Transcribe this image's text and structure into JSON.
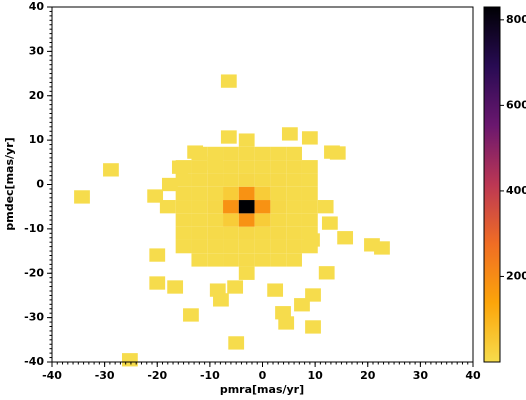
{
  "chart_data": {
    "type": "heatmap",
    "xlabel": "pmra[mas/yr]",
    "ylabel": "pmdec[mas/yr]",
    "xlim": [
      -40,
      40
    ],
    "ylim": [
      -40,
      40
    ],
    "xticks": [
      -40,
      -30,
      -20,
      -10,
      0,
      10,
      20,
      30,
      40
    ],
    "yticks": [
      -40,
      -30,
      -20,
      -10,
      0,
      10,
      20,
      30,
      40
    ],
    "clim": [
      0,
      830
    ],
    "cticks": [
      200,
      400,
      600,
      800
    ],
    "colormap": [
      "#f6dc4c",
      "#fca50a",
      "#f06d24",
      "#bc3754",
      "#6a176e",
      "#280b53",
      "#000004"
    ],
    "x": [
      -3,
      -12,
      -9,
      -6,
      -3,
      0,
      3,
      6,
      -15,
      -12,
      -9,
      -6,
      -3,
      0,
      3,
      6,
      9,
      -15,
      -12,
      -9,
      -6,
      -3,
      0,
      3,
      6,
      9,
      -15,
      -12,
      -9,
      -6,
      -3,
      0,
      3,
      6,
      9,
      -18,
      -15,
      -12,
      -9,
      -6,
      -3,
      0,
      3,
      6,
      9,
      12,
      -15,
      -12,
      -9,
      -6,
      -3,
      0,
      3,
      6,
      9,
      -15,
      -12,
      -9,
      -6,
      -3,
      0,
      3,
      6,
      9,
      -15,
      -12,
      -9,
      -6,
      -3,
      0,
      3,
      6,
      9,
      -12,
      -9,
      -6,
      -3,
      0,
      3,
      6,
      -3,
      -6.4,
      -28.8,
      -34.3,
      -25.2,
      5.2,
      9.0,
      -6.4,
      -12.8,
      -9.0,
      13.2,
      14.3,
      -15.7,
      -17.6,
      -20.4,
      12.8,
      15.7,
      20.8,
      22.7,
      -20.0,
      -16.6,
      -20.0,
      12.2,
      9.6,
      7.5,
      3.9,
      -13.6,
      -5.2,
      -8.5,
      -7.9,
      4.5,
      9.6,
      -5.0,
      2.4,
      9.4
    ],
    "y": [
      -20,
      -17,
      -17,
      -17,
      -17,
      -17,
      -17,
      -17,
      -14,
      -14,
      -14,
      -14,
      -14,
      -14,
      -14,
      -14,
      -14,
      -11,
      -11,
      -11,
      -11,
      -11,
      -11,
      -11,
      -11,
      -11,
      -8,
      -8,
      -8,
      -8,
      -8,
      -8,
      -8,
      -8,
      -8,
      -5,
      -5,
      -5,
      -5,
      -5,
      -5,
      -5,
      -5,
      -5,
      -5,
      -5,
      -2,
      -2,
      -2,
      -2,
      -2,
      -2,
      -2,
      -2,
      -2,
      1,
      1,
      1,
      1,
      1,
      1,
      1,
      1,
      1,
      4,
      4,
      4,
      4,
      4,
      4,
      4,
      4,
      4,
      7,
      7,
      7,
      7,
      7,
      7,
      7,
      10,
      23.3,
      3.3,
      -2.8,
      -39.5,
      11.4,
      10.5,
      10.7,
      7.3,
      4.8,
      7.3,
      7.1,
      3.9,
      0,
      -2.6,
      -8.7,
      -12.0,
      -13.6,
      -14.3,
      -15.9,
      -23.1,
      -22.2,
      -19.9,
      -24.9,
      -27.1,
      -28.9,
      -29.4,
      -23.1,
      -23.8,
      -26.0,
      -31.2,
      -32.1,
      -35.7,
      -23.8,
      -12.5
    ],
    "values": [
      1,
      1,
      1,
      2,
      2,
      2,
      1,
      1,
      1,
      2,
      2,
      3,
      3,
      3,
      2,
      2,
      1,
      1,
      2,
      4,
      6,
      9,
      6,
      4,
      2,
      1,
      2,
      3,
      6,
      41,
      185,
      41,
      6,
      3,
      2,
      1,
      2,
      3,
      9,
      185,
      830,
      185,
      9,
      3,
      2,
      1,
      2,
      3,
      6,
      41,
      185,
      41,
      6,
      3,
      2,
      1,
      2,
      4,
      6,
      9,
      6,
      4,
      2,
      1,
      1,
      2,
      2,
      3,
      3,
      3,
      2,
      2,
      1,
      1,
      1,
      2,
      2,
      2,
      1,
      1,
      1,
      1,
      1,
      1,
      1,
      1,
      1,
      1,
      1,
      1,
      1,
      1,
      1,
      1,
      1,
      1,
      1,
      1,
      1,
      1,
      1,
      1,
      1,
      1,
      1,
      1,
      1,
      1,
      1,
      1,
      1,
      1,
      1,
      1,
      1
    ]
  }
}
